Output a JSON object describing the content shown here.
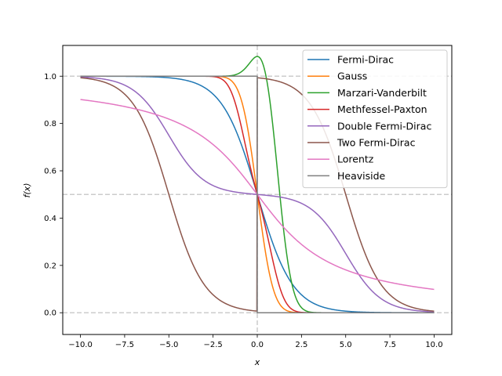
{
  "chart_data": {
    "type": "line",
    "title": "",
    "xlabel": "x",
    "ylabel": "f(x)",
    "xlim": [
      -11,
      11
    ],
    "ylim": [
      -0.092,
      1.13
    ],
    "xticks": [
      -10,
      -7.5,
      -5,
      -2.5,
      0,
      2.5,
      5,
      7.5,
      10
    ],
    "xtick_labels": [
      "−10.0",
      "−7.5",
      "−5.0",
      "−2.5",
      "0.0",
      "2.5",
      "5.0",
      "7.5",
      "10.0"
    ],
    "yticks": [
      0.0,
      0.2,
      0.4,
      0.6,
      0.8,
      1.0
    ],
    "ytick_labels": [
      "0.0",
      "0.2",
      "0.4",
      "0.6",
      "0.8",
      "1.0"
    ],
    "reference_lines": {
      "horizontal": [
        0,
        0.5,
        1
      ],
      "vertical": [
        0
      ]
    },
    "legend_position": "top-right",
    "x_range": [
      -10,
      10
    ],
    "series": [
      {
        "name": "Fermi-Dirac",
        "color": "#1f77b4",
        "function": "fermi_dirac",
        "width": 1.0
      },
      {
        "name": "Gauss",
        "color": "#ff7f0e",
        "function": "gauss",
        "width": 1.0
      },
      {
        "name": "Marzari-Vanderbilt",
        "color": "#2ca02c",
        "function": "marzari_vanderbilt",
        "width": 1.0
      },
      {
        "name": "Methfessel-Paxton",
        "color": "#d62728",
        "function": "methfessel_paxton",
        "width": 1.0
      },
      {
        "name": "Double Fermi-Dirac",
        "color": "#9467bd",
        "function": "double_fermi_dirac",
        "width": 1.0,
        "center": 5.0
      },
      {
        "name": "Two Fermi-Dirac",
        "color": "#8c564b",
        "function": "two_fermi_dirac",
        "width": 1.0,
        "center": 5.0
      },
      {
        "name": "Lorentz",
        "color": "#e377c2",
        "function": "lorentz",
        "width": 3.2
      },
      {
        "name": "Heaviside",
        "color": "#7f7f7f",
        "function": "heaviside"
      }
    ]
  }
}
